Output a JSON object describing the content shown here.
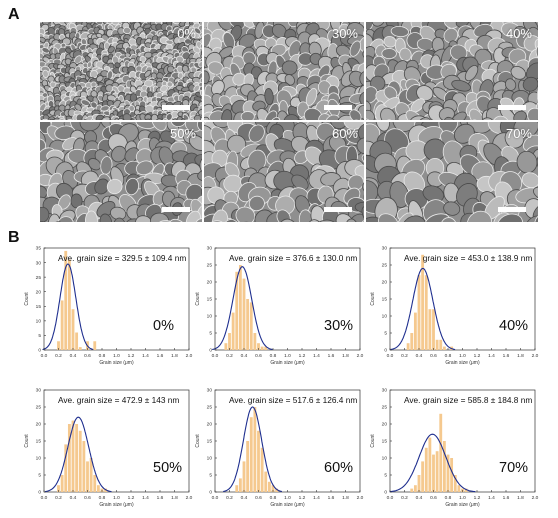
{
  "panel_labels": {
    "a": "A",
    "b": "B"
  },
  "sem_images": [
    {
      "label": "0%"
    },
    {
      "label": "30%"
    },
    {
      "label": "40%"
    },
    {
      "label": "50%"
    },
    {
      "label": "60%"
    },
    {
      "label": "70%"
    }
  ],
  "chart_data": [
    {
      "type": "bar",
      "annotation": "Ave. grain size = 329.5 ± 109.4 nm",
      "label": "0%",
      "xlabel": "Grain size (μm)",
      "ylabel": "Count",
      "xlim": [
        0,
        2.0
      ],
      "ylim": [
        0,
        35
      ],
      "xticks": [
        "0.0",
        "0.2",
        "0.4",
        "0.6",
        "0.8",
        "1.0",
        "1.2",
        "1.4",
        "1.6",
        "1.8",
        "2.0"
      ],
      "yticks": [
        "0",
        "5",
        "10",
        "15",
        "20",
        "25",
        "30",
        "35"
      ],
      "bin_centers": [
        0.2,
        0.25,
        0.3,
        0.35,
        0.4,
        0.45,
        0.5,
        0.55,
        0.6,
        0.65,
        0.7
      ],
      "values": [
        3,
        17,
        34,
        31,
        14,
        6,
        1,
        0,
        3,
        0,
        3
      ],
      "fit": {
        "mean": 0.33,
        "sd": 0.1094,
        "peak": 29.5
      }
    },
    {
      "type": "bar",
      "annotation": "Ave. grain size = 376.6 ± 130.0 nm",
      "label": "30%",
      "xlabel": "Grain size (μm)",
      "ylabel": "Count",
      "xlim": [
        0,
        2.0
      ],
      "ylim": [
        0,
        30
      ],
      "xticks": [
        "0.0",
        "0.2",
        "0.4",
        "0.6",
        "0.8",
        "1.0",
        "1.2",
        "1.4",
        "1.6",
        "1.8",
        "2.0"
      ],
      "yticks": [
        "0",
        "5",
        "10",
        "15",
        "20",
        "25",
        "30"
      ],
      "bin_centers": [
        0.15,
        0.2,
        0.25,
        0.3,
        0.35,
        0.4,
        0.45,
        0.5,
        0.55,
        0.6,
        0.65,
        0.7
      ],
      "values": [
        2,
        5,
        11,
        23,
        25,
        21,
        15,
        14,
        5,
        2,
        1,
        1
      ],
      "fit": {
        "mean": 0.377,
        "sd": 0.13,
        "peak": 24.5
      }
    },
    {
      "type": "bar",
      "annotation": "Ave. grain size = 453.0 ± 138.9 nm",
      "label": "40%",
      "xlabel": "Grain size (μm)",
      "ylabel": "Count",
      "xlim": [
        0,
        2.0
      ],
      "ylim": [
        0,
        30
      ],
      "xticks": [
        "0.0",
        "0.2",
        "0.4",
        "0.6",
        "0.8",
        "1.0",
        "1.2",
        "1.4",
        "1.6",
        "1.8",
        "2.0"
      ],
      "yticks": [
        "0",
        "5",
        "10",
        "15",
        "20",
        "25",
        "30"
      ],
      "bin_centers": [
        0.25,
        0.3,
        0.35,
        0.4,
        0.45,
        0.5,
        0.55,
        0.6,
        0.65,
        0.7,
        0.75,
        0.8,
        0.85
      ],
      "values": [
        2,
        5,
        11,
        22,
        28,
        22,
        12,
        12,
        3,
        3,
        1,
        0,
        1
      ],
      "fit": {
        "mean": 0.453,
        "sd": 0.1389,
        "peak": 24
      }
    },
    {
      "type": "bar",
      "annotation": "Ave. grain size = 472.9 ± 143 nm",
      "label": "50%",
      "xlabel": "Grain size (μm)",
      "ylabel": "Count",
      "xlim": [
        0,
        2.0
      ],
      "ylim": [
        0,
        30
      ],
      "xticks": [
        "0.0",
        "0.2",
        "0.4",
        "0.6",
        "0.8",
        "1.0",
        "1.2",
        "1.4",
        "1.6",
        "1.8",
        "2.0"
      ],
      "yticks": [
        "0",
        "5",
        "10",
        "15",
        "20",
        "25",
        "30"
      ],
      "bin_centers": [
        0.2,
        0.25,
        0.3,
        0.35,
        0.4,
        0.45,
        0.5,
        0.55,
        0.6,
        0.65,
        0.7,
        0.75,
        0.8,
        0.85
      ],
      "values": [
        2,
        5,
        14,
        20,
        21,
        20,
        18,
        15,
        9,
        10,
        5,
        2,
        1,
        1
      ],
      "fit": {
        "mean": 0.473,
        "sd": 0.143,
        "peak": 22
      }
    },
    {
      "type": "bar",
      "annotation": "Ave. grain size = 517.6 ± 126.4 nm",
      "label": "60%",
      "xlabel": "Grain size (μm)",
      "ylabel": "Count",
      "xlim": [
        0,
        2.0
      ],
      "ylim": [
        0,
        30
      ],
      "xticks": [
        "0.0",
        "0.2",
        "0.4",
        "0.6",
        "0.8",
        "1.0",
        "1.2",
        "1.4",
        "1.6",
        "1.8",
        "2.0"
      ],
      "yticks": [
        "0",
        "5",
        "10",
        "15",
        "20",
        "25",
        "30"
      ],
      "bin_centers": [
        0.3,
        0.35,
        0.4,
        0.45,
        0.5,
        0.55,
        0.6,
        0.65,
        0.7,
        0.75,
        0.8,
        0.85
      ],
      "values": [
        2,
        4,
        9,
        15,
        22,
        25,
        18,
        13,
        6,
        3,
        2,
        1
      ],
      "fit": {
        "mean": 0.518,
        "sd": 0.1264,
        "peak": 25
      }
    },
    {
      "type": "bar",
      "annotation": "Ave. grain size = 585.8 ± 184.8 nm",
      "label": "70%",
      "xlabel": "Grain size (μm)",
      "ylabel": "Count",
      "xlim": [
        0,
        2.0
      ],
      "ylim": [
        0,
        30
      ],
      "xticks": [
        "0.0",
        "0.2",
        "0.4",
        "0.6",
        "0.8",
        "1.0",
        "1.2",
        "1.4",
        "1.6",
        "1.8",
        "2.0"
      ],
      "yticks": [
        "0",
        "5",
        "10",
        "15",
        "20",
        "25",
        "30"
      ],
      "bin_centers": [
        0.3,
        0.35,
        0.4,
        0.45,
        0.5,
        0.55,
        0.6,
        0.65,
        0.7,
        0.75,
        0.8,
        0.85,
        0.9,
        0.95,
        1.0,
        1.05
      ],
      "values": [
        1,
        2,
        5,
        9,
        13,
        16,
        11,
        12,
        23,
        15,
        11,
        10,
        5,
        2,
        1,
        1
      ],
      "fit": {
        "mean": 0.586,
        "sd": 0.1848,
        "peak": 17
      }
    }
  ],
  "colors": {
    "bar": "#f5c98f",
    "fit": "#1f2f8f",
    "axis": "#333333"
  }
}
